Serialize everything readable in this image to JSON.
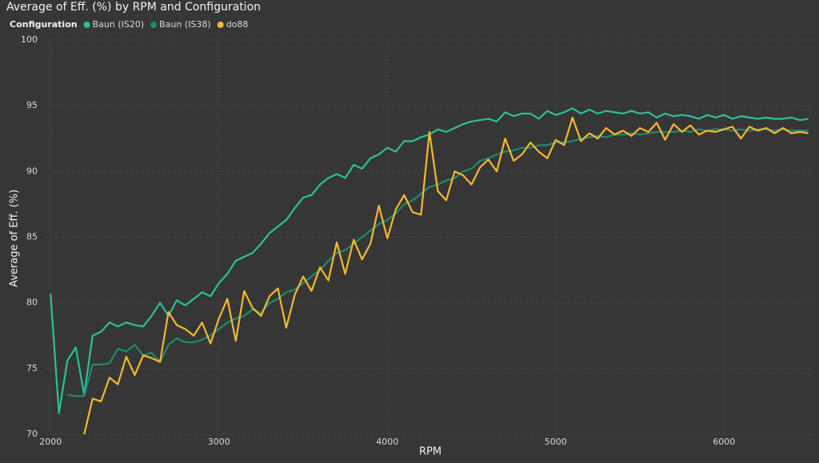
{
  "chart_data": {
    "type": "line",
    "title": "Average of Eff. (%) by RPM and Configuration",
    "legend_title": "Configuration",
    "x_label": "RPM",
    "y_label": "Average of Eff. (%)",
    "grid": true,
    "xlim": [
      1980,
      6540
    ],
    "ylim": [
      70,
      100
    ],
    "xticks": [
      2000,
      3000,
      4000,
      5000,
      6000
    ],
    "yticks": [
      70,
      75,
      80,
      85,
      90,
      95,
      100
    ],
    "x": [
      2000,
      2050,
      2100,
      2150,
      2200,
      2250,
      2300,
      2350,
      2400,
      2450,
      2500,
      2550,
      2600,
      2650,
      2700,
      2750,
      2800,
      2850,
      2900,
      2950,
      3000,
      3050,
      3100,
      3150,
      3200,
      3250,
      3300,
      3350,
      3400,
      3450,
      3500,
      3550,
      3600,
      3650,
      3700,
      3750,
      3800,
      3850,
      3900,
      3950,
      4000,
      4050,
      4100,
      4150,
      4200,
      4250,
      4300,
      4350,
      4400,
      4450,
      4500,
      4550,
      4600,
      4650,
      4700,
      4750,
      4800,
      4850,
      4900,
      4950,
      5000,
      5050,
      5100,
      5150,
      5200,
      5250,
      5300,
      5350,
      5400,
      5450,
      5500,
      5550,
      5600,
      5650,
      5700,
      5750,
      5800,
      5850,
      5900,
      5950,
      6000,
      6050,
      6100,
      6150,
      6200,
      6250,
      6300,
      6350,
      6400,
      6450,
      6500
    ],
    "series": [
      {
        "name": "Baun (IS20)",
        "color": "#2cbf96",
        "values": [
          80.7,
          71.6,
          75.6,
          76.6,
          73.0,
          77.5,
          77.8,
          78.5,
          78.2,
          78.5,
          78.3,
          78.2,
          79.0,
          80.0,
          79.0,
          80.2,
          79.8,
          80.3,
          80.8,
          80.5,
          81.5,
          82.2,
          83.2,
          83.5,
          83.8,
          84.5,
          85.3,
          85.8,
          86.3,
          87.2,
          88.0,
          88.2,
          89.0,
          89.5,
          89.8,
          89.5,
          90.5,
          90.2,
          91.0,
          91.3,
          91.8,
          91.5,
          92.3,
          92.3,
          92.6,
          92.8,
          93.2,
          93.0,
          93.3,
          93.6,
          93.8,
          93.9,
          94.0,
          93.8,
          94.5,
          94.2,
          94.4,
          94.4,
          94.0,
          94.6,
          94.3,
          94.5,
          94.8,
          94.4,
          94.7,
          94.4,
          94.6,
          94.5,
          94.4,
          94.6,
          94.4,
          94.5,
          94.1,
          94.4,
          94.2,
          94.3,
          94.2,
          94.0,
          94.3,
          94.1,
          94.3,
          94.0,
          94.2,
          94.1,
          94.0,
          94.1,
          94.0,
          94.0,
          94.1,
          93.9,
          94.0
        ]
      },
      {
        "name": "Baun (IS38)",
        "color": "#1f8a6f",
        "values": [
          null,
          null,
          73.0,
          72.9,
          72.9,
          75.3,
          75.3,
          75.4,
          76.5,
          76.3,
          76.8,
          76.0,
          76.2,
          75.5,
          76.8,
          77.3,
          77.0,
          77.0,
          77.2,
          77.5,
          78.0,
          78.5,
          78.8,
          79.0,
          79.5,
          79.2,
          80.0,
          80.3,
          80.8,
          81.0,
          81.5,
          82.0,
          82.5,
          83.2,
          83.8,
          84.0,
          84.5,
          85.0,
          85.5,
          86.0,
          86.3,
          86.8,
          87.5,
          87.8,
          88.3,
          88.8,
          89.0,
          89.3,
          89.5,
          90.0,
          90.2,
          90.8,
          91.0,
          91.3,
          91.5,
          91.6,
          91.8,
          91.8,
          92.0,
          92.0,
          92.2,
          92.2,
          92.3,
          92.5,
          92.6,
          92.7,
          92.6,
          92.8,
          92.8,
          92.9,
          92.8,
          92.9,
          93.0,
          93.0,
          93.0,
          93.1,
          93.0,
          93.2,
          93.1,
          93.2,
          93.2,
          93.1,
          93.2,
          93.1,
          93.2,
          93.2,
          93.1,
          93.2,
          93.1,
          93.1,
          93.1
        ]
      },
      {
        "name": "do88",
        "color": "#f5b82e",
        "values": [
          null,
          null,
          null,
          null,
          70.0,
          72.7,
          72.5,
          74.3,
          73.8,
          75.9,
          74.5,
          76.0,
          75.8,
          75.5,
          79.3,
          78.3,
          78.0,
          77.5,
          78.5,
          76.9,
          78.8,
          80.3,
          77.1,
          80.9,
          79.6,
          79.0,
          80.5,
          81.1,
          78.1,
          80.6,
          82.0,
          80.9,
          82.7,
          81.7,
          84.6,
          82.2,
          84.8,
          83.3,
          84.5,
          87.4,
          84.9,
          87.1,
          88.2,
          86.9,
          86.7,
          93.0,
          88.5,
          87.8,
          90.0,
          89.7,
          89.0,
          90.3,
          90.9,
          90.0,
          92.5,
          90.8,
          91.3,
          92.2,
          91.5,
          91.0,
          92.4,
          92.0,
          94.1,
          92.3,
          92.9,
          92.5,
          93.3,
          92.8,
          93.1,
          92.7,
          93.3,
          93.0,
          93.7,
          92.4,
          93.6,
          93.0,
          93.5,
          92.8,
          93.1,
          93.0,
          93.2,
          93.4,
          92.5,
          93.4,
          93.1,
          93.3,
          92.9,
          93.3,
          92.9,
          93.0,
          92.9
        ]
      }
    ]
  }
}
